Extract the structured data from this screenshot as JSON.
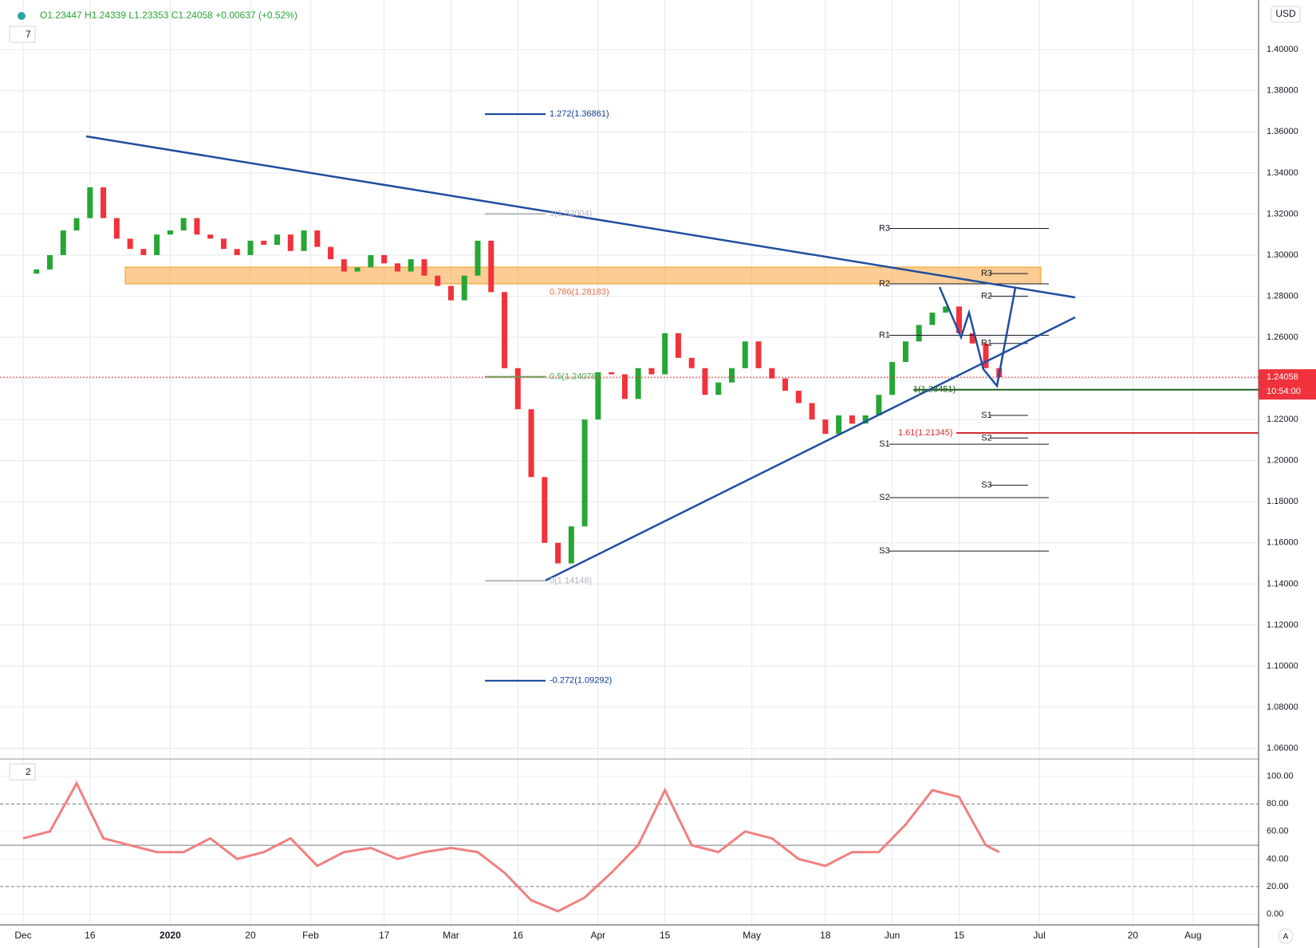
{
  "chart_data": {
    "type": "candlestick",
    "header": {
      "ohlc": "O1.23447 H1.24339 L1.23353 C1.24058 +0.00637 (+0.52%)",
      "interval": "7",
      "currency": "USD"
    },
    "last_price": {
      "value": 1.24058,
      "label": "1.24058"
    },
    "countdown": "10:54:00",
    "x": [
      0,
      2,
      4,
      6,
      8,
      10,
      12,
      14,
      16,
      18,
      20,
      22,
      24,
      26,
      28,
      30,
      32,
      34,
      36,
      38,
      40,
      42,
      44,
      46,
      48,
      50,
      52,
      54,
      56,
      58,
      60,
      62,
      64,
      66,
      68,
      70,
      72,
      74,
      76,
      78,
      80,
      82,
      84,
      86,
      88,
      90,
      92,
      94,
      96,
      98,
      100,
      102,
      104,
      106,
      108,
      110,
      112,
      114,
      116,
      118,
      120,
      122,
      124,
      126,
      128,
      130,
      132,
      134,
      136,
      138,
      140,
      142,
      144,
      146
    ],
    "close": [
      1.291,
      1.293,
      1.3,
      1.312,
      1.318,
      1.333,
      1.318,
      1.308,
      1.303,
      1.3,
      1.31,
      1.312,
      1.318,
      1.31,
      1.308,
      1.303,
      1.3,
      1.307,
      1.305,
      1.31,
      1.302,
      1.312,
      1.304,
      1.298,
      1.292,
      1.294,
      1.3,
      1.296,
      1.292,
      1.298,
      1.29,
      1.285,
      1.278,
      1.29,
      1.307,
      1.282,
      1.245,
      1.225,
      1.192,
      1.16,
      1.15,
      1.168,
      1.22,
      1.243,
      1.242,
      1.23,
      1.245,
      1.242,
      1.262,
      1.25,
      1.245,
      1.232,
      1.238,
      1.245,
      1.258,
      1.245,
      1.24,
      1.234,
      1.228,
      1.22,
      1.213,
      1.222,
      1.218,
      1.222,
      1.232,
      1.248,
      1.258,
      1.266,
      1.272,
      1.275,
      1.262,
      1.257,
      1.245,
      1.2406
    ],
    "up_color": "#26a634",
    "down_color": "#f0323c",
    "xlim": [
      -3.46,
      184.8
    ],
    "xticks": [
      {
        "value": 0,
        "label": "Dec"
      },
      {
        "value": 10,
        "label": "16"
      },
      {
        "value": 22,
        "label": "2020"
      },
      {
        "value": 34,
        "label": "20"
      },
      {
        "value": 43,
        "label": "Feb"
      },
      {
        "value": 54,
        "label": "17"
      },
      {
        "value": 64,
        "label": "Mar"
      },
      {
        "value": 74,
        "label": "16"
      },
      {
        "value": 86,
        "label": "Apr"
      },
      {
        "value": 96,
        "label": "15"
      },
      {
        "value": 109,
        "label": "May"
      },
      {
        "value": 120,
        "label": "18"
      },
      {
        "value": 130,
        "label": "Jun"
      },
      {
        "value": 140,
        "label": "15"
      },
      {
        "value": 152,
        "label": "Jul"
      },
      {
        "value": 166,
        "label": "20"
      },
      {
        "value": 175,
        "label": "Aug"
      }
    ],
    "ylim": [
      1.0575,
      1.4125
    ],
    "yticks": [
      {
        "value": 1.06,
        "label": "1.06000"
      },
      {
        "value": 1.08,
        "label": "1.08000"
      },
      {
        "value": 1.1,
        "label": "1.10000"
      },
      {
        "value": 1.12,
        "label": "1.12000"
      },
      {
        "value": 1.14,
        "label": "1.14000"
      },
      {
        "value": 1.16,
        "label": "1.16000"
      },
      {
        "value": 1.18,
        "label": "1.18000"
      },
      {
        "value": 1.2,
        "label": "1.20000"
      },
      {
        "value": 1.22,
        "label": "1.22000"
      },
      {
        "value": 1.24,
        "label": "1.24000"
      },
      {
        "value": 1.26,
        "label": "1.26000"
      },
      {
        "value": 1.28,
        "label": "1.28000"
      },
      {
        "value": 1.3,
        "label": "1.30000"
      },
      {
        "value": 1.32,
        "label": "1.32000"
      },
      {
        "value": 1.34,
        "label": "1.34000"
      },
      {
        "value": 1.36,
        "label": "1.36000"
      },
      {
        "value": 1.38,
        "label": "1.38000"
      },
      {
        "value": 1.4,
        "label": "1.40000"
      }
    ],
    "grid": true,
    "fib_levels": [
      {
        "label": "1.272(1.36861)",
        "price": 1.36861,
        "color": "#0d3d99"
      },
      {
        "label": "1(1.32004)",
        "price": 1.32004,
        "color": "#b2b5be"
      },
      {
        "label": "0.786(1.28183)",
        "price": 1.28183,
        "color": "#f06a4a"
      },
      {
        "label": "0.5(1.24076)",
        "price": 1.24076,
        "color": "#4caf50"
      },
      {
        "label": "0(1.14148)",
        "price": 1.14148,
        "color": "#b2b5be"
      },
      {
        "label": "-0.272(1.09292)",
        "price": 1.09292,
        "color": "#0d3d99"
      },
      {
        "label": "1.61(1.21345)",
        "price": 1.21345,
        "color": "#d32f2f"
      },
      {
        "label": "1(1.23451)",
        "price": 1.23451,
        "color": "#1b5e20"
      }
    ],
    "pivots_monthly": [
      {
        "label": "R3",
        "price": 1.313
      },
      {
        "label": "R2",
        "price": 1.286
      },
      {
        "label": "R1",
        "price": 1.261
      },
      {
        "label": "S1",
        "price": 1.208
      },
      {
        "label": "S2",
        "price": 1.182
      },
      {
        "label": "S3",
        "price": 1.156
      }
    ],
    "pivots_weekly": [
      {
        "label": "R3",
        "price": 1.291
      },
      {
        "label": "R2",
        "price": 1.28
      },
      {
        "label": "R1",
        "price": 1.257
      },
      {
        "label": "S1",
        "price": 1.222
      },
      {
        "label": "S2",
        "price": 1.211
      },
      {
        "label": "S3",
        "price": 1.188
      }
    ],
    "oscillator": {
      "pane": "2",
      "x": [
        0,
        4,
        8,
        12,
        16,
        20,
        24,
        28,
        32,
        36,
        40,
        44,
        48,
        52,
        56,
        60,
        64,
        68,
        72,
        76,
        80,
        84,
        88,
        92,
        96,
        100,
        104,
        108,
        112,
        116,
        120,
        124,
        128,
        132,
        136,
        140,
        144,
        146
      ],
      "values": [
        55,
        60,
        95,
        55,
        50,
        45,
        45,
        55,
        40,
        45,
        55,
        35,
        45,
        48,
        40,
        45,
        48,
        45,
        30,
        10,
        2,
        12,
        30,
        50,
        90,
        50,
        45,
        60,
        55,
        40,
        35,
        45,
        45,
        65,
        90,
        85,
        50,
        45
      ],
      "color": "#f08080",
      "ylim": [
        -5,
        108
      ],
      "yticks": [
        {
          "value": 0,
          "label": "0.00"
        },
        {
          "value": 20,
          "label": "20.00"
        },
        {
          "value": 40,
          "label": "40.00"
        },
        {
          "value": 60,
          "label": "60.00"
        },
        {
          "value": 80,
          "label": "80.00"
        },
        {
          "value": 100,
          "label": "100.00"
        }
      ],
      "bands": [
        20,
        50,
        80
      ]
    }
  }
}
